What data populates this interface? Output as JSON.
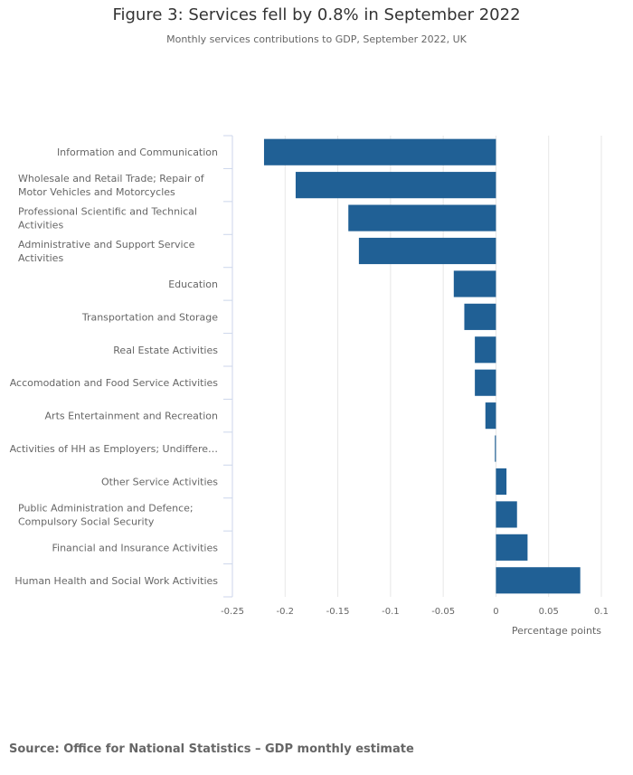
{
  "title": "Figure 3: Services fell by 0.8% in September 2022",
  "subtitle": "Monthly services contributions to GDP, September 2022, UK",
  "source": "Source: Office for National Statistics –  GDP monthly estimate",
  "colors": {
    "bar": "#206095",
    "gridline": "#e6e6e6",
    "axis": "#ccd6eb",
    "text": "#666666"
  },
  "chart_data": {
    "type": "bar",
    "orientation": "horizontal",
    "categories": [
      "Information and Communication",
      "Wholesale and Retail Trade; Repair of Motor Vehicles and Motorcycles",
      "Professional Scientific and Technical Activities",
      "Administrative and Support Service Activities",
      "Education",
      "Transportation and Storage",
      "Real Estate Activities",
      "Accomodation and Food Service Activities",
      "Arts Entertainment and Recreation",
      "Activities of HH as Employers; Undiffere…",
      "Other Service Activities",
      "Public Administration and Defence; Compulsory Social Security",
      "Financial and Insurance Activities",
      "Human Health and Social Work Activities"
    ],
    "category_lines": [
      [
        "Information and Communication"
      ],
      [
        "Wholesale and Retail Trade; Repair of",
        "Motor Vehicles and Motorcycles"
      ],
      [
        "Professional Scientific and Technical",
        "Activities"
      ],
      [
        "Administrative and Support Service",
        "Activities"
      ],
      [
        "Education"
      ],
      [
        "Transportation and Storage"
      ],
      [
        "Real Estate Activities"
      ],
      [
        "Accomodation and Food Service Activities"
      ],
      [
        "Arts Entertainment and Recreation"
      ],
      [
        "Activities of HH as Employers; Undiffere…"
      ],
      [
        "Other Service Activities"
      ],
      [
        "Public Administration and Defence;",
        "Compulsory Social Security"
      ],
      [
        "Financial and Insurance Activities"
      ],
      [
        "Human Health and Social Work Activities"
      ]
    ],
    "values": [
      -0.22,
      -0.19,
      -0.14,
      -0.13,
      -0.04,
      -0.03,
      -0.02,
      -0.02,
      -0.01,
      -0.001,
      0.01,
      0.02,
      0.03,
      0.08
    ],
    "xlim": [
      -0.25,
      0.1
    ],
    "xticks": [
      -0.25,
      -0.2,
      -0.15,
      -0.1,
      -0.05,
      0,
      0.05,
      0.1
    ],
    "xtick_labels": [
      "-0.25",
      "-0.2",
      "-0.15",
      "-0.1",
      "-0.05",
      "0",
      "0.05",
      "0.1"
    ],
    "xlabel": "Percentage points",
    "grid": true,
    "legend": "none"
  }
}
